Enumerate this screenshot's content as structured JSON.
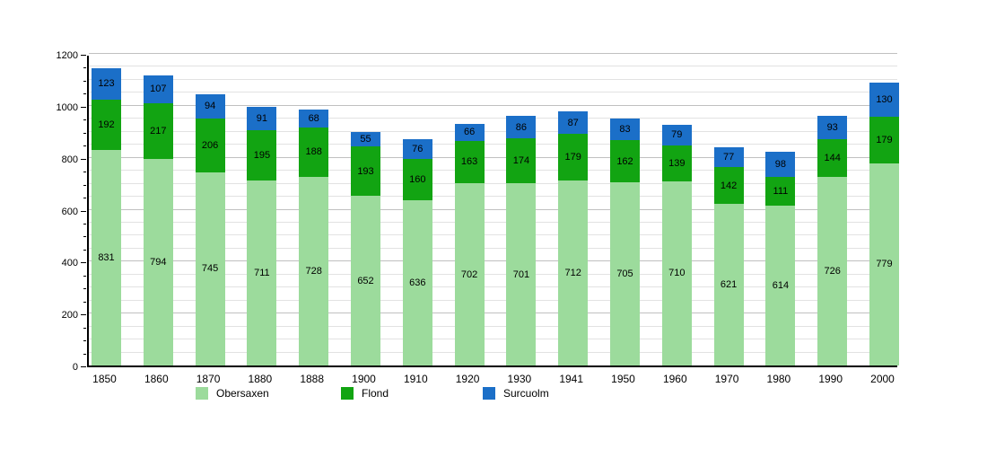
{
  "chart_data": {
    "type": "bar",
    "stacked": true,
    "title": "",
    "xlabel": "",
    "ylabel": "",
    "categories": [
      "1850",
      "1860",
      "1870",
      "1880",
      "1888",
      "1900",
      "1910",
      "1920",
      "1930",
      "1941",
      "1950",
      "1960",
      "1970",
      "1980",
      "1990",
      "2000"
    ],
    "series": [
      {
        "name": "Obersaxen",
        "color": "#9cdb9c",
        "values": [
          831,
          794,
          745,
          711,
          728,
          652,
          636,
          702,
          701,
          712,
          705,
          710,
          621,
          614,
          726,
          779
        ]
      },
      {
        "name": "Flond",
        "color": "#12a412",
        "values": [
          192,
          217,
          206,
          195,
          188,
          193,
          160,
          163,
          174,
          179,
          162,
          139,
          142,
          111,
          144,
          179
        ]
      },
      {
        "name": "Surcuolm",
        "color": "#1b6fc8",
        "values": [
          123,
          107,
          94,
          91,
          68,
          55,
          76,
          66,
          86,
          87,
          83,
          79,
          77,
          98,
          93,
          130
        ]
      }
    ],
    "ylim": [
      0,
      1200
    ],
    "y_major_ticks": [
      0,
      200,
      400,
      600,
      800,
      1000,
      1200
    ],
    "y_minor_step": 50,
    "grid": true,
    "legend_position": "bottom"
  },
  "legend": {
    "items": [
      {
        "label": "Obersaxen",
        "color": "#9cdb9c"
      },
      {
        "label": "Flond",
        "color": "#12a412"
      },
      {
        "label": "Surcuolm",
        "color": "#1b6fc8"
      }
    ]
  },
  "colors": {
    "background": "#ffffff",
    "axis": "#000000",
    "grid_minor": "#e2e2e2",
    "grid_major": "#c0c0c0",
    "label_text": "#000000"
  }
}
